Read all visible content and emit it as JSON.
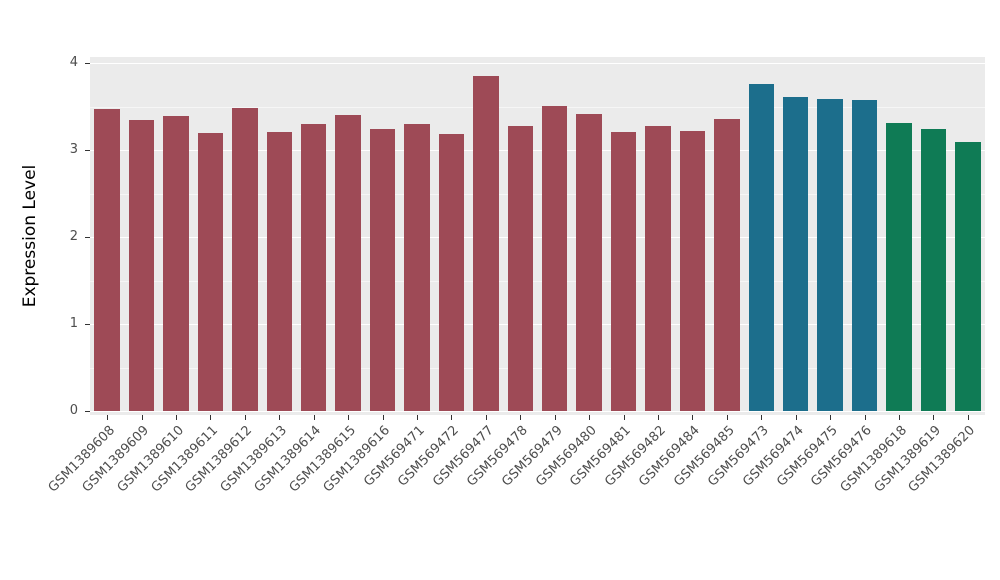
{
  "chart_data": {
    "type": "bar",
    "title": "",
    "xlabel": "",
    "ylabel": "Expression Level",
    "yticks": [
      0,
      1,
      2,
      3,
      4
    ],
    "ylim": [
      0,
      4
    ],
    "grid": "white major and minor gridlines on gray panel",
    "legend": "none",
    "categories": [
      "GSM1389608",
      "GSM1389609",
      "GSM1389610",
      "GSM1389611",
      "GSM1389612",
      "GSM1389613",
      "GSM1389614",
      "GSM1389615",
      "GSM1389616",
      "GSM569471",
      "GSM569472",
      "GSM569477",
      "GSM569478",
      "GSM569479",
      "GSM569480",
      "GSM569481",
      "GSM569482",
      "GSM569484",
      "GSM569485",
      "GSM569473",
      "GSM569474",
      "GSM569475",
      "GSM569476",
      "GSM1389618",
      "GSM1389619",
      "GSM1389620"
    ],
    "values": [
      3.47,
      3.35,
      3.39,
      3.19,
      3.48,
      3.21,
      3.3,
      3.4,
      3.24,
      3.3,
      3.18,
      3.85,
      3.28,
      3.51,
      3.41,
      3.21,
      3.28,
      3.22,
      3.36,
      3.76,
      3.61,
      3.59,
      3.57,
      3.31,
      3.24,
      3.09
    ],
    "bar_colors": [
      "#9E4A56",
      "#9E4A56",
      "#9E4A56",
      "#9E4A56",
      "#9E4A56",
      "#9E4A56",
      "#9E4A56",
      "#9E4A56",
      "#9E4A56",
      "#9E4A56",
      "#9E4A56",
      "#9E4A56",
      "#9E4A56",
      "#9E4A56",
      "#9E4A56",
      "#9E4A56",
      "#9E4A56",
      "#9E4A56",
      "#9E4A56",
      "#1C6E8C",
      "#1C6E8C",
      "#1C6E8C",
      "#1C6E8C",
      "#0F7B55",
      "#0F7B55",
      "#0F7B55"
    ],
    "groups": [
      {
        "color": "#9E4A56",
        "count": 19
      },
      {
        "color": "#1C6E8C",
        "count": 4
      },
      {
        "color": "#0F7B55",
        "count": 3
      }
    ]
  },
  "style": {
    "panel_background": "#EBEBEB",
    "grid_color": "#FFFFFF",
    "tick_color": "#333333",
    "axis_text_color": "#4D4D4D"
  }
}
